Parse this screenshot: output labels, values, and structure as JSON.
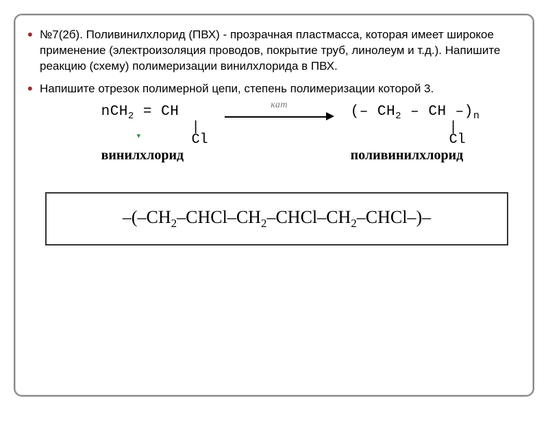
{
  "problem": {
    "number": "№7(2б).",
    "text": "Поливинилхлорид (ПВХ) -  прозрачная пластмасса, которая имеет широкое применение (электроизоляция проводов, покрытие труб, линолеум и т.д.). Напишите реакцию (схему) полимеризации винилхлорида в ПВХ."
  },
  "task2": "Напишите отрезок полимерной цепи, степень полимеризации которой 3.",
  "reaction": {
    "coeff": "n",
    "monomer_line": "CH₂ = CH",
    "monomer_sub_bond": "|",
    "monomer_sub_atom": "Cl",
    "monomer_name": "винилхлорид",
    "arrow_label": "кат",
    "polymer_line_prefix": "(– CH₂ – CH –)",
    "polymer_subscript": "n",
    "polymer_sub_bond": "|",
    "polymer_sub_atom": "Cl",
    "polymer_name": "поливинилхлорид"
  },
  "chain": {
    "text": "–(–CH₂–CHCl–CH₂–CHCl–CH₂–CHCl–)–"
  },
  "style": {
    "bullet_color": "#9a2f2f",
    "border_color": "#888",
    "text_color": "#000000",
    "accent_mark_color": "#2c8a3a"
  }
}
